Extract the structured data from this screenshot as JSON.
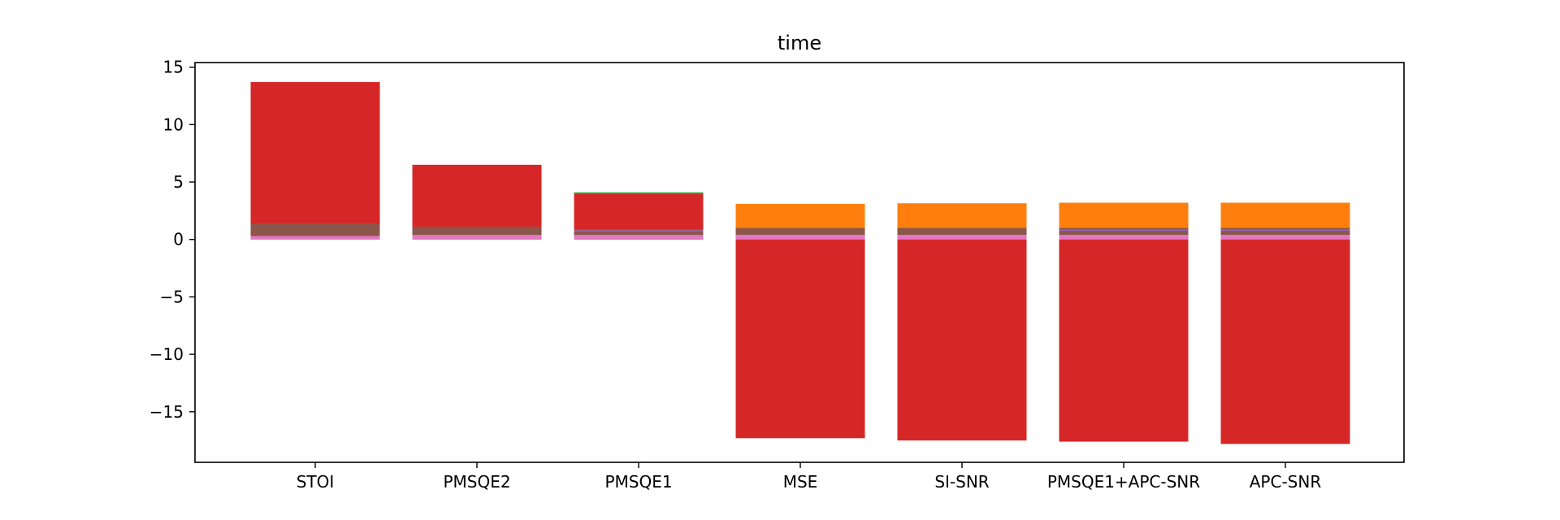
{
  "chart_data": {
    "type": "bar",
    "title": "time",
    "xlabel": "",
    "ylabel": "",
    "categories": [
      "STOI",
      "PMSQE2",
      "PMSQE1",
      "MSE",
      "SI-SNR",
      "PMSQE1+APC-SNR",
      "APC-SNR"
    ],
    "ylim": [
      -19.4,
      15.4
    ],
    "yticks": [
      15,
      10,
      5,
      0,
      -5,
      -10,
      -15
    ],
    "ytick_labels": [
      "15",
      "10",
      "5",
      "0",
      "−5",
      "−10",
      "−15"
    ],
    "grid": false,
    "legend": "none",
    "segments": [
      {
        "category": "STOI",
        "from": 0,
        "to": 13.7,
        "color": "#d62728"
      },
      {
        "category": "STOI",
        "from": 0.3,
        "to": 1.4,
        "color": "#8c564b"
      },
      {
        "category": "STOI",
        "from": 0,
        "to": 0.3,
        "color": "#e377c2"
      },
      {
        "category": "PMSQE2",
        "from": 0,
        "to": 6.5,
        "color": "#d62728"
      },
      {
        "category": "PMSQE2",
        "from": 0.4,
        "to": 1.1,
        "color": "#8c564b"
      },
      {
        "category": "PMSQE2",
        "from": 0,
        "to": 0.4,
        "color": "#e377c2"
      },
      {
        "category": "PMSQE1",
        "from": 0,
        "to": 4.1,
        "color": "#2ca02c"
      },
      {
        "category": "PMSQE1",
        "from": 0,
        "to": 3.95,
        "color": "#d62728"
      },
      {
        "category": "PMSQE1",
        "from": 0.4,
        "to": 0.9,
        "color": "#8c564b"
      },
      {
        "category": "PMSQE1",
        "from": 0.7,
        "to": 0.8,
        "color": "#9467bd"
      },
      {
        "category": "PMSQE1",
        "from": 0,
        "to": 0.4,
        "color": "#e377c2"
      },
      {
        "category": "MSE",
        "from": 0,
        "to": 3.1,
        "color": "#ff7f0e"
      },
      {
        "category": "MSE",
        "from": 0.4,
        "to": 1.0,
        "color": "#8c564b"
      },
      {
        "category": "MSE",
        "from": 0,
        "to": 0.4,
        "color": "#e377c2"
      },
      {
        "category": "MSE",
        "from": -17.3,
        "to": 0,
        "color": "#d62728"
      },
      {
        "category": "SI-SNR",
        "from": 0,
        "to": 3.15,
        "color": "#ff7f0e"
      },
      {
        "category": "SI-SNR",
        "from": 0.4,
        "to": 1.0,
        "color": "#8c564b"
      },
      {
        "category": "SI-SNR",
        "from": 0,
        "to": 0.4,
        "color": "#e377c2"
      },
      {
        "category": "SI-SNR",
        "from": -17.5,
        "to": 0,
        "color": "#d62728"
      },
      {
        "category": "PMSQE1+APC-SNR",
        "from": 0,
        "to": 3.2,
        "color": "#ff7f0e"
      },
      {
        "category": "PMSQE1+APC-SNR",
        "from": 0.4,
        "to": 1.0,
        "color": "#8c564b"
      },
      {
        "category": "PMSQE1+APC-SNR",
        "from": 0.75,
        "to": 0.85,
        "color": "#9467bd"
      },
      {
        "category": "PMSQE1+APC-SNR",
        "from": 0,
        "to": 0.4,
        "color": "#e377c2"
      },
      {
        "category": "PMSQE1+APC-SNR",
        "from": -17.6,
        "to": 0,
        "color": "#d62728"
      },
      {
        "category": "APC-SNR",
        "from": 0,
        "to": 3.2,
        "color": "#ff7f0e"
      },
      {
        "category": "APC-SNR",
        "from": 0.4,
        "to": 1.0,
        "color": "#8c564b"
      },
      {
        "category": "APC-SNR",
        "from": 0.75,
        "to": 0.85,
        "color": "#9467bd"
      },
      {
        "category": "APC-SNR",
        "from": 0,
        "to": 0.4,
        "color": "#e377c2"
      },
      {
        "category": "APC-SNR",
        "from": -17.8,
        "to": 0,
        "color": "#d62728"
      }
    ]
  }
}
